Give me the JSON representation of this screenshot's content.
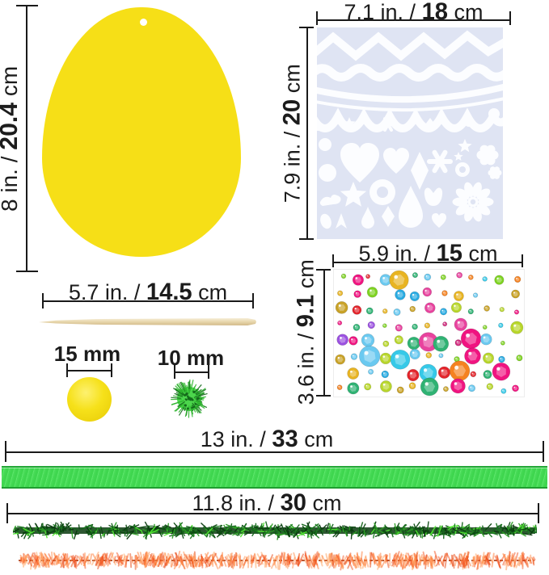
{
  "title": "Easter egg craft kit parts with measurements",
  "labels": {
    "egg_height": {
      "pre": "8 in. / ",
      "bold": "20.4",
      "post": " cm"
    },
    "stencil_width": {
      "pre": "7.1 in. / ",
      "bold": "18",
      "post": " cm"
    },
    "stencil_height": {
      "pre": "7.9 in. / ",
      "bold": "20",
      "post": " cm"
    },
    "stick_length": {
      "pre": "5.7 in. / ",
      "bold": "14.5",
      "post": " cm"
    },
    "pom_large": "15 mm",
    "pom_small": "10 mm",
    "gem_width": {
      "pre": "5.9 in. / ",
      "bold": "15",
      "post": " cm"
    },
    "gem_height": {
      "pre": "3.6 in. / ",
      "bold": "9.1",
      "post": " cm"
    },
    "ribbon_length": {
      "pre": "13 in. / ",
      "bold": "33",
      "post": " cm"
    },
    "pipe_length": {
      "pre": "11.8 in. / ",
      "bold": "30",
      "post": " cm"
    }
  },
  "colors": {
    "egg": "#F6DF17",
    "stencil_bg": "#DFE4F3",
    "stencil_shape": "#FCFDFF",
    "ribbon": "#3FD64F",
    "ribbon_edge": "#23A837",
    "pom_yellow": "#F6E11A",
    "line": "#1A1A1A",
    "text": "#1C1C1C"
  },
  "decor": {
    "gems": {
      "palette": [
        "#E3242B",
        "#29ABE2",
        "#36C9E8",
        "#E8439E",
        "#F01480",
        "#7ED321",
        "#B8D62B",
        "#E8B422",
        "#F58220",
        "#9B51E0",
        "#2FB273",
        "#D0257A",
        "#6AC9F0",
        "#C9A227"
      ]
    },
    "tinsel": {
      "palette": [
        "#0C4A11",
        "#15661B",
        "#093A0E",
        "#2E9E26",
        "#1B7A20"
      ],
      "fleck": "#52E832"
    },
    "orange": {
      "palette": [
        "#F4511E",
        "#FF7A33",
        "#FF8F4D",
        "#E8430C",
        "#FFA05C"
      ],
      "core": "#A52C00"
    },
    "pom_green": {
      "base": "#4CD64C",
      "spike": "#2FB52F",
      "dark": "#146B1B"
    }
  }
}
